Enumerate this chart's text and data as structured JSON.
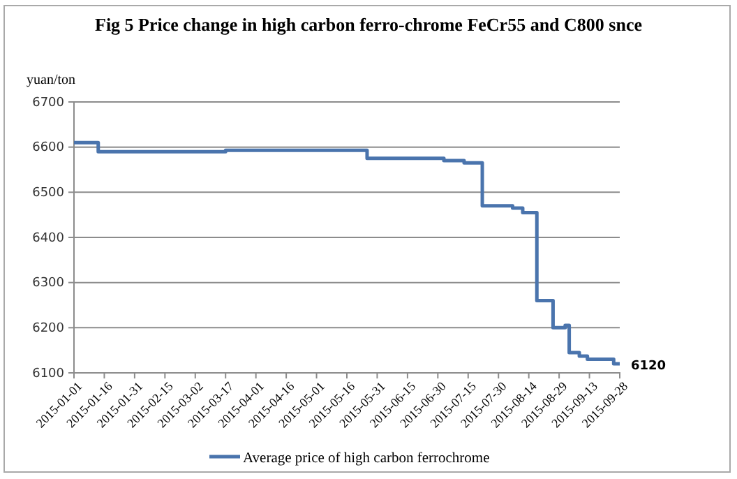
{
  "chart_data": {
    "type": "step",
    "title": "Fig 5 Price change in high carbon ferro-chrome FeCr55 and C800 snce",
    "ylabel": "yuan/ton",
    "x": [
      "2015-01-01",
      "2015-01-13",
      "2015-03-17",
      "2015-05-26",
      "2015-07-03",
      "2015-07-13",
      "2015-07-22",
      "2015-08-06",
      "2015-08-11",
      "2015-08-18",
      "2015-08-26",
      "2015-09-01",
      "2015-09-03",
      "2015-09-08",
      "2015-09-12",
      "2015-09-25",
      "2015-09-28"
    ],
    "series": [
      {
        "name": "Average price of high carbon ferrochrome",
        "color": "#4a74ad",
        "values": [
          6610,
          6590,
          6593,
          6575,
          6570,
          6565,
          6470,
          6465,
          6455,
          6260,
          6200,
          6205,
          6145,
          6137,
          6130,
          6120,
          6120
        ]
      }
    ],
    "xlim": [
      "2015-01-01",
      "2015-09-28"
    ],
    "xticks": [
      "2015-01-01",
      "2015-01-16",
      "2015-01-31",
      "2015-02-15",
      "2015-03-02",
      "2015-03-17",
      "2015-04-01",
      "2015-04-16",
      "2015-05-01",
      "2015-05-16",
      "2015-05-31",
      "2015-06-15",
      "2015-06-30",
      "2015-07-15",
      "2015-07-30",
      "2015-08-14",
      "2015-08-29",
      "2015-09-13",
      "2015-09-28"
    ],
    "ylim": [
      6100,
      6700
    ],
    "yticks": [
      6100,
      6200,
      6300,
      6400,
      6500,
      6600,
      6700
    ],
    "grid": "y",
    "legend": "bottom",
    "marker": "none",
    "line_style": "solid",
    "annotations": [
      {
        "text": "6120",
        "x": "2015-09-28",
        "y": 6120
      }
    ]
  }
}
